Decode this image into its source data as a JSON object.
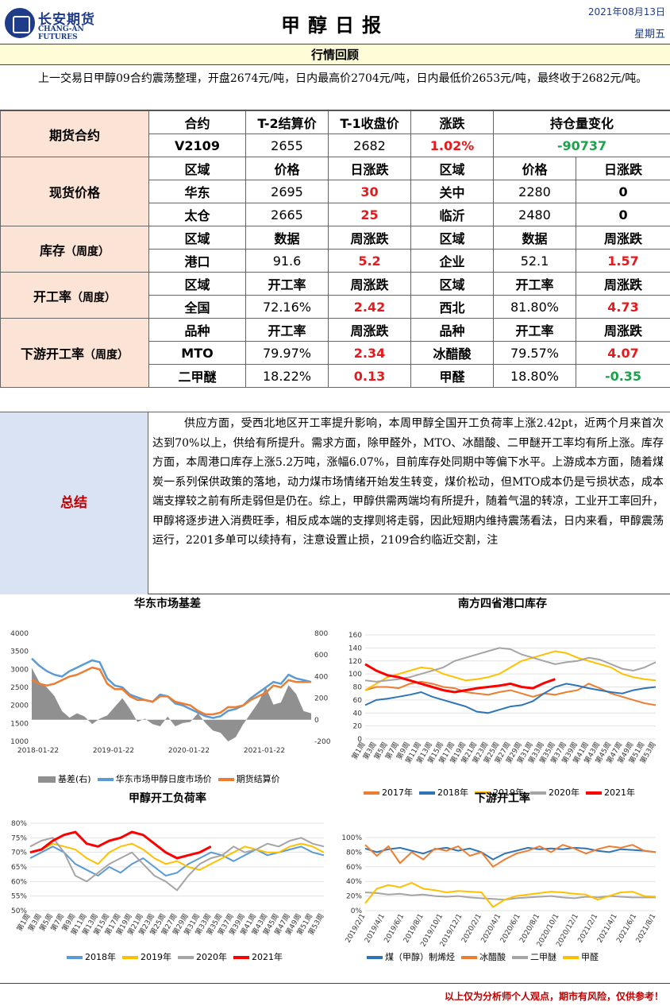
{
  "header": {
    "logo_cn": "长安期货",
    "logo_en": "CHANG-AN FUTURES",
    "title": "甲醇日报",
    "date": "2021年08月13日",
    "weekday": "星期五"
  },
  "review": {
    "heading": "行情回顾",
    "text": "上一交易日甲醇09合约震荡整理，开盘2674元/吨，日内最高价2704元/吨，日内最低价2653元/吨，最终收于2682元/吨。"
  },
  "futures": {
    "label": "期货合约",
    "headers": [
      "合约",
      "T-2结算价",
      "T-1收盘价",
      "涨跌",
      "持仓量变化"
    ],
    "row": [
      "V2109",
      "2655",
      "2682",
      "1.02%",
      "-90737"
    ]
  },
  "spot": {
    "label": "现货价格",
    "headers": [
      "区域",
      "价格",
      "日涨跌",
      "区域",
      "价格",
      "日涨跌"
    ],
    "rows": [
      [
        "华东",
        "2695",
        "30",
        "关中",
        "2280",
        "0"
      ],
      [
        "太仓",
        "2665",
        "25",
        "临沂",
        "2480",
        "0"
      ]
    ]
  },
  "inventory": {
    "label": "库存",
    "label_sub": "（周度）",
    "headers": [
      "区域",
      "数据",
      "周涨跌",
      "区域",
      "数据",
      "周涨跌"
    ],
    "row": [
      "港口",
      "91.6",
      "5.2",
      "企业",
      "52.1",
      "1.57"
    ]
  },
  "operating": {
    "label": "开工率",
    "label_sub": "（周度）",
    "headers": [
      "区域",
      "开工率",
      "周涨跌",
      "区域",
      "开工率",
      "周涨跌"
    ],
    "row": [
      "全国",
      "72.16%",
      "2.42",
      "西北",
      "81.80%",
      "4.73"
    ]
  },
  "downstream": {
    "label": "下游开工率",
    "label_sub": "（周度）",
    "headers": [
      "品种",
      "开工率",
      "周涨跌",
      "品种",
      "开工率",
      "周涨跌"
    ],
    "rows": [
      [
        "MTO",
        "79.97%",
        "2.34",
        "冰醋酸",
        "79.57%",
        "4.07"
      ],
      [
        "二甲醚",
        "18.22%",
        "0.13",
        "甲醛",
        "18.80%",
        "-0.35"
      ]
    ]
  },
  "summary": {
    "label": "总结",
    "text": "供应方面，受西北地区开工率提升影响，本周甲醇全国开工负荷率上涨2.42pt，近两个月来首次达到70%以上，供给有所提升。需求方面，除甲醛外，MTO、冰醋酸、二甲醚开工率均有所上涨。库存方面，本周港口库存上涨5.2万吨，涨幅6.07%，目前库存处同期中等偏下水平。上游成本方面，随着煤炭一系列保供政策的落地，动力煤市场情绪开始发生转变，煤价松动，但MTO成本仍是亏损状态，成本端支撑较之前有所走弱但是仍在。综上，甲醇供需两端均有所提升，随着气温的转凉，工业开工率回升，甲醇将逐步进入消费旺季，相反成本端的支撑则将走弱，因此短期内维持震荡看法，日内来看，甲醇震荡运行，2201多单可以续持有，注意设置止损，2109合约临近交割，注"
  },
  "chart_data": [
    {
      "type": "line",
      "title": "华东市场基差",
      "x_ticks": [
        "2018-01-22",
        "2019-01-22",
        "2020-01-22",
        "2021-01-22"
      ],
      "y_left_ticks": [
        "4000",
        "3500",
        "3000",
        "2500",
        "2000",
        "1500",
        "1000"
      ],
      "y_right_ticks": [
        "800",
        "600",
        "400",
        "200",
        "0",
        "-200"
      ],
      "ylim_left": [
        1000,
        4000
      ],
      "ylim_right": [
        -200,
        800
      ],
      "series": [
        {
          "name": "基差(右)",
          "color": "#909090",
          "axis": "right",
          "kind": "area",
          "values": [
            480,
            350,
            300,
            220,
            80,
            20,
            60,
            30,
            -40,
            10,
            40,
            120,
            200,
            100,
            -20,
            10,
            -40,
            -60,
            30,
            -60,
            -30,
            -20,
            60,
            -30,
            -100,
            -120,
            -200,
            -160,
            -40,
            60,
            160,
            300,
            140,
            160,
            320,
            240,
            80,
            60
          ]
        },
        {
          "name": "华东市场甲醇日度市场价",
          "color": "#5b9bd5",
          "axis": "left",
          "values": [
            3300,
            3100,
            2950,
            2850,
            2800,
            2950,
            3050,
            3150,
            3250,
            3200,
            2750,
            2550,
            2500,
            2300,
            2220,
            2150,
            2100,
            2300,
            2250,
            2050,
            2000,
            1900,
            1800,
            1700,
            1650,
            1700,
            1850,
            1900,
            2000,
            2200,
            2350,
            2500,
            2650,
            2600,
            2850,
            2750,
            2700,
            2650
          ]
        },
        {
          "name": "期货结算价",
          "color": "#ed7d31",
          "axis": "left",
          "values": [
            2700,
            2600,
            2550,
            2600,
            2700,
            2800,
            2850,
            2950,
            3050,
            3000,
            2600,
            2450,
            2450,
            2250,
            2150,
            2150,
            2100,
            2250,
            2250,
            2100,
            2050,
            2000,
            1850,
            1750,
            1750,
            1800,
            1950,
            1950,
            2000,
            2150,
            2250,
            2350,
            2550,
            2500,
            2700,
            2650,
            2650,
            2650
          ]
        }
      ]
    },
    {
      "type": "line",
      "title": "南方四省港口库存",
      "ylim": [
        0,
        160
      ],
      "y_ticks": [
        "160",
        "140",
        "120",
        "100",
        "80",
        "60",
        "40",
        "20",
        "0"
      ],
      "x_ticks": [
        "第1周",
        "第3周",
        "第5周",
        "第7周",
        "第9周",
        "第11周",
        "第13周",
        "第15周",
        "第17周",
        "第19周",
        "第21周",
        "第23周",
        "第25周",
        "第27周",
        "第29周",
        "第31周",
        "第33周",
        "第35周",
        "第37周",
        "第39周",
        "第41周",
        "第43周",
        "第45周",
        "第47周",
        "第49周",
        "第51周",
        "第53周"
      ],
      "series": [
        {
          "name": "2017年",
          "color": "#ed7d31",
          "values": [
            75,
            80,
            80,
            78,
            85,
            88,
            85,
            80,
            78,
            72,
            70,
            68,
            72,
            75,
            70,
            65,
            70,
            68,
            72,
            75,
            85,
            78,
            70,
            65,
            60,
            55,
            52
          ]
        },
        {
          "name": "2018年",
          "color": "#2e75b6",
          "values": [
            52,
            60,
            62,
            65,
            68,
            72,
            65,
            60,
            55,
            50,
            42,
            40,
            45,
            50,
            52,
            58,
            70,
            80,
            85,
            82,
            78,
            75,
            72,
            70,
            75,
            78,
            80
          ]
        },
        {
          "name": "2019年",
          "color": "#ffc000",
          "values": [
            75,
            85,
            95,
            100,
            105,
            110,
            108,
            100,
            95,
            90,
            92,
            95,
            100,
            110,
            120,
            125,
            130,
            135,
            132,
            125,
            120,
            115,
            110,
            100,
            95,
            92,
            90
          ]
        },
        {
          "name": "2020年",
          "color": "#a5a5a5",
          "values": [
            90,
            88,
            90,
            92,
            95,
            100,
            105,
            110,
            120,
            125,
            130,
            135,
            140,
            138,
            130,
            125,
            120,
            115,
            118,
            120,
            125,
            122,
            115,
            108,
            105,
            110,
            118
          ]
        },
        {
          "name": "2021年",
          "color": "#ff0000",
          "values": [
            115,
            105,
            98,
            95,
            90,
            85,
            80,
            75,
            72,
            75,
            78,
            80,
            82,
            85,
            80,
            78,
            86,
            92
          ]
        }
      ]
    },
    {
      "type": "line",
      "title": "甲醇开工负荷率",
      "ylim": [
        50,
        80
      ],
      "y_ticks": [
        "80%",
        "75%",
        "70%",
        "65%",
        "60%",
        "55%",
        "50%"
      ],
      "x_ticks": [
        "第1周",
        "第3周",
        "第5周",
        "第7周",
        "第9周",
        "第11周",
        "第13周",
        "第15周",
        "第17周",
        "第19周",
        "第21周",
        "第23周",
        "第25周",
        "第27周",
        "第29周",
        "第31周",
        "第33周",
        "第35周",
        "第37周",
        "第39周",
        "第41周",
        "第43周",
        "第45周",
        "第47周",
        "第49周",
        "第51周",
        "第53周"
      ],
      "series": [
        {
          "name": "2018年",
          "color": "#5b9bd5",
          "values": [
            68,
            70,
            72,
            70,
            66,
            64,
            62,
            65,
            63,
            66,
            68,
            65,
            62,
            63,
            66,
            68,
            70,
            69,
            67,
            69,
            71,
            69,
            70,
            71,
            72,
            70,
            69
          ]
        },
        {
          "name": "2019年",
          "color": "#ffc000",
          "values": [
            70,
            71,
            73,
            72,
            71,
            68,
            66,
            70,
            72,
            73,
            71,
            68,
            66,
            67,
            65,
            64,
            66,
            68,
            70,
            72,
            71,
            70,
            70,
            72,
            73,
            72,
            70
          ]
        },
        {
          "name": "2020年",
          "color": "#a5a5a5",
          "values": [
            72,
            74,
            75,
            70,
            62,
            60,
            63,
            66,
            68,
            70,
            66,
            62,
            60,
            57,
            62,
            66,
            68,
            69,
            72,
            70,
            71,
            73,
            72,
            74,
            75,
            73,
            72
          ]
        },
        {
          "name": "2021年",
          "color": "#ff0000",
          "values": [
            70,
            71,
            74,
            76,
            77,
            73,
            72,
            74,
            75,
            77,
            76,
            73,
            70,
            68,
            69,
            70,
            72
          ]
        }
      ]
    },
    {
      "type": "line",
      "title": "下游开工率",
      "ylim": [
        0,
        100
      ],
      "y_ticks": [
        "100%",
        "80%",
        "60%",
        "40%",
        "20%",
        "0%"
      ],
      "x_ticks": [
        "2019/2/1",
        "2019/4/1",
        "2019/6/1",
        "2019/8/1",
        "2019/10/1",
        "2019/12/1",
        "2020/2/1",
        "2020/4/1",
        "2020/6/1",
        "2020/8/1",
        "2020/10/1",
        "2020/12/1",
        "2021/2/1",
        "2021/4/1",
        "2021/6/1",
        "2021/8/1"
      ],
      "series": [
        {
          "name": "煤（甲醇）制烯烃",
          "color": "#2e75b6",
          "values": [
            85,
            80,
            84,
            86,
            82,
            78,
            84,
            86,
            82,
            85,
            80,
            70,
            78,
            82,
            86,
            84,
            85,
            84,
            86,
            85,
            82,
            80,
            84,
            83,
            82,
            80
          ]
        },
        {
          "name": "冰醋酸",
          "color": "#ed7d31",
          "values": [
            90,
            75,
            88,
            65,
            80,
            70,
            85,
            82,
            88,
            75,
            80,
            60,
            70,
            78,
            82,
            88,
            80,
            90,
            85,
            78,
            84,
            88,
            86,
            90,
            82,
            80
          ]
        },
        {
          "name": "二甲醚",
          "color": "#a5a5a5",
          "values": [
            25,
            24,
            22,
            23,
            21,
            22,
            20,
            19,
            20,
            18,
            17,
            16,
            15,
            17,
            18,
            19,
            20,
            18,
            17,
            19,
            18,
            20,
            19,
            18,
            18,
            18
          ]
        },
        {
          "name": "甲醛",
          "color": "#ffc000",
          "values": [
            10,
            30,
            35,
            32,
            38,
            30,
            28,
            25,
            27,
            26,
            25,
            5,
            15,
            20,
            22,
            24,
            26,
            25,
            23,
            22,
            15,
            20,
            25,
            26,
            20,
            19
          ]
        }
      ]
    }
  ],
  "footer": {
    "disclaimer": "以上仅为分析师个人观点，期市有风险，仅供参考！"
  }
}
